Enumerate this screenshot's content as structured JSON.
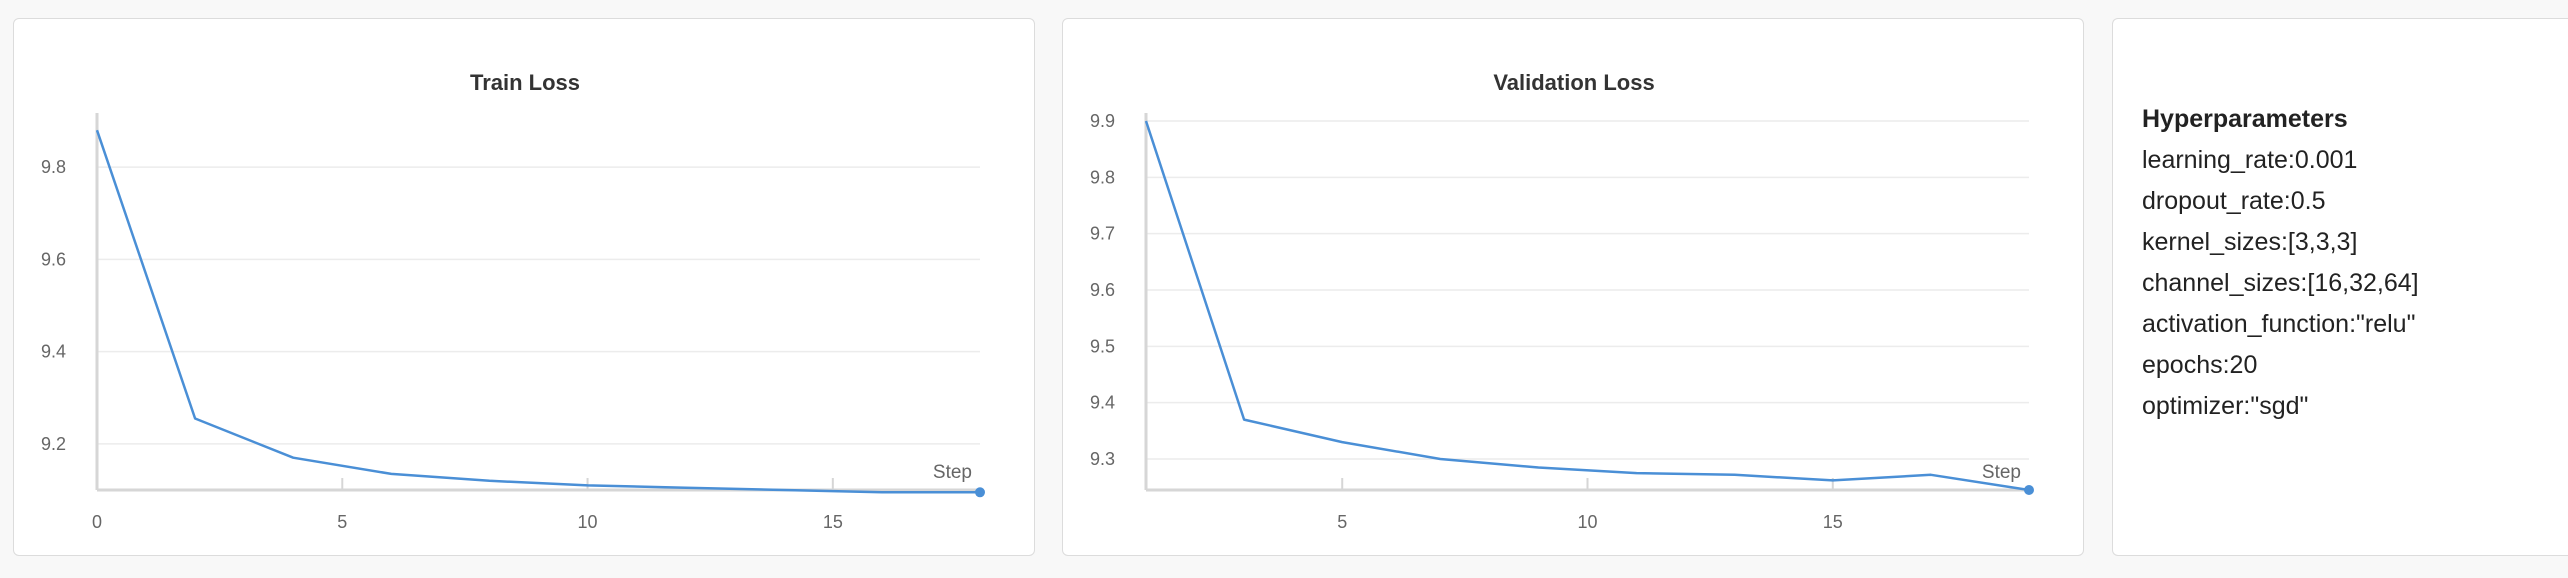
{
  "chart_data": [
    {
      "id": "train",
      "type": "line",
      "title": "Train Loss",
      "xlabel": "Step",
      "ylabel": "",
      "x": [
        0,
        2,
        4,
        6,
        8,
        10,
        12,
        14,
        16,
        18
      ],
      "series": [
        {
          "values": [
            9.88,
            9.255,
            9.17,
            9.135,
            9.12,
            9.11,
            9.105,
            9.1,
            9.095,
            9.095
          ]
        }
      ],
      "xlim": [
        0,
        18
      ],
      "ylim": [
        9.1,
        9.9
      ],
      "xticks": [
        0,
        5,
        10,
        15
      ],
      "xtick_labels": [
        "0",
        "5",
        "10",
        "15"
      ],
      "yticks": [
        9.2,
        9.4,
        9.6,
        9.8
      ],
      "ytick_labels": [
        "9.2",
        "9.4",
        "9.6",
        "9.8"
      ],
      "grid": true,
      "color": "#4a8fd6"
    },
    {
      "id": "val",
      "type": "line",
      "title": "Validation Loss",
      "xlabel": "Step",
      "ylabel": "",
      "x": [
        1,
        3,
        5,
        7,
        9,
        11,
        13,
        15,
        17,
        19
      ],
      "series": [
        {
          "values": [
            9.9,
            9.37,
            9.33,
            9.3,
            9.285,
            9.275,
            9.272,
            9.262,
            9.272,
            9.245
          ]
        }
      ],
      "xlim": [
        1,
        19
      ],
      "ylim": [
        9.245,
        9.9
      ],
      "xticks": [
        5,
        10,
        15
      ],
      "xtick_labels": [
        "5",
        "10",
        "15"
      ],
      "yticks": [
        9.3,
        9.4,
        9.5,
        9.6,
        9.7,
        9.8,
        9.9
      ],
      "ytick_labels": [
        "9.3",
        "9.4",
        "9.5",
        "9.6",
        "9.7",
        "9.8",
        "9.9"
      ],
      "grid": true,
      "color": "#4a8fd6"
    }
  ],
  "hyperparameters": {
    "title": "Hyperparameters",
    "items": [
      "learning_rate:0.001",
      "dropout_rate:0.5",
      "kernel_sizes:[3,3,3]",
      "channel_sizes:[16,32,64]",
      "activation_function:\"relu\"",
      "epochs:20",
      "optimizer:\"sgd\""
    ]
  }
}
